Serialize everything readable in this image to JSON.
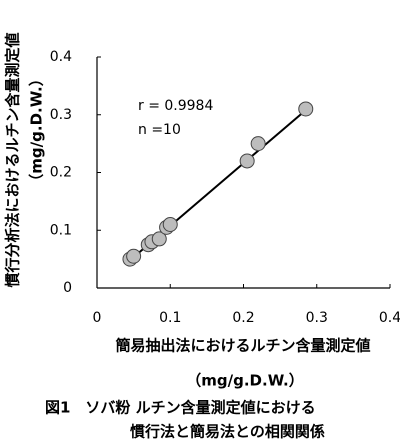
{
  "chart_data": {
    "type": "scatter",
    "x_label": [
      "簡易抽出法におけるルチン含量測定値",
      "（mg/g.D.W.）"
    ],
    "y_label": [
      "慣行分析法におけるルチン含量測定値",
      "（mg/g.D.W.）"
    ],
    "annotations": [
      "r = 0.9984",
      "n =10"
    ],
    "caption": [
      "図1　ソバ粉 ルチン含量測定値における",
      "慣行法と簡易法との相関関係"
    ],
    "x": [
      0.045,
      0.05,
      0.07,
      0.075,
      0.085,
      0.095,
      0.1,
      0.205,
      0.22,
      0.285
    ],
    "values": [
      0.05,
      0.055,
      0.075,
      0.08,
      0.085,
      0.105,
      0.11,
      0.22,
      0.25,
      0.31
    ],
    "color": "#bdbdbd",
    "trendline": {
      "x": [
        0.045,
        0.285
      ],
      "values": [
        0.048,
        0.308
      ]
    },
    "xlim": [
      0,
      0.4
    ],
    "xticks": [
      0,
      0.1,
      0.2,
      0.3,
      0.4
    ],
    "ylim": [
      0,
      0.4
    ],
    "yticks": [
      0,
      0.1,
      0.2,
      0.3,
      0.4
    ]
  }
}
